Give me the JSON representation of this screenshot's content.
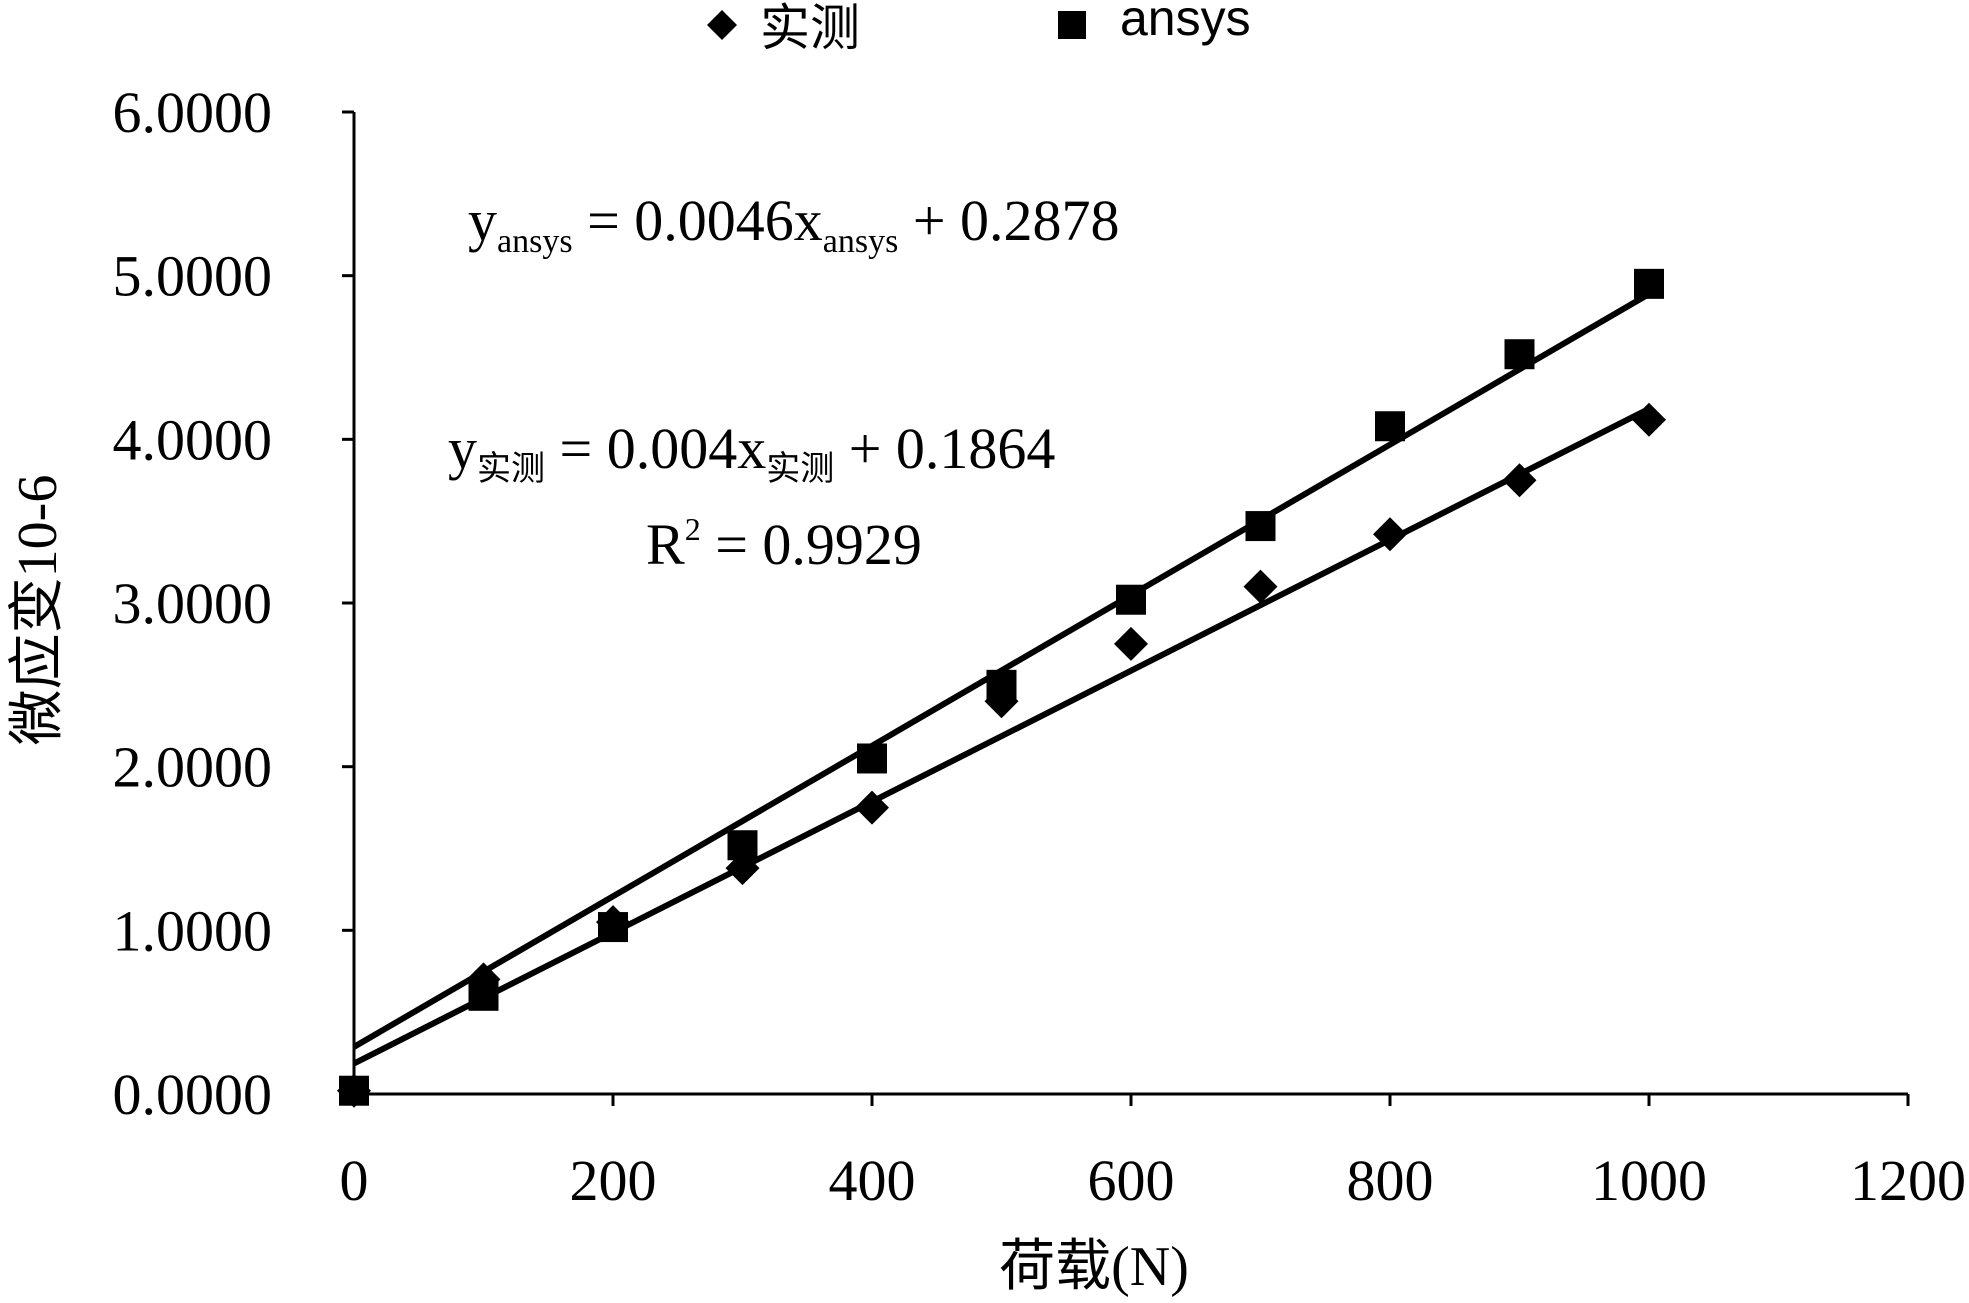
{
  "chart_data": {
    "type": "scatter",
    "title": "",
    "xlabel": "荷载(N)",
    "ylabel": "微应变10-6",
    "xlim": [
      0,
      1200
    ],
    "ylim": [
      0,
      6
    ],
    "x_ticks": [
      0,
      200,
      400,
      600,
      800,
      1000,
      1200
    ],
    "y_ticks": [
      0,
      1,
      2,
      3,
      4,
      5,
      6
    ],
    "x_tick_labels": [
      "0",
      "200",
      "400",
      "600",
      "800",
      "1000",
      "1200"
    ],
    "y_tick_labels": [
      "0.0000",
      "1.0000",
      "2.0000",
      "3.0000",
      "4.0000",
      "5.0000",
      "6.0000"
    ],
    "grid": false,
    "legend_position": "top-center",
    "series": [
      {
        "name": "实测",
        "marker": "diamond",
        "x": [
          0,
          100,
          200,
          300,
          400,
          500,
          600,
          700,
          800,
          900,
          1000
        ],
        "y": [
          0.02,
          0.7,
          1.05,
          1.38,
          1.75,
          2.4,
          2.75,
          3.1,
          3.42,
          3.75,
          4.12
        ],
        "trendline": {
          "slope": 0.004,
          "intercept": 0.1864
        }
      },
      {
        "name": "ansys",
        "marker": "square",
        "x": [
          0,
          100,
          200,
          300,
          400,
          500,
          600,
          700,
          800,
          900,
          1000
        ],
        "y": [
          0.02,
          0.6,
          1.02,
          1.52,
          2.05,
          2.5,
          3.02,
          3.47,
          4.08,
          4.52,
          4.95
        ],
        "trendline": {
          "slope": 0.0046,
          "intercept": 0.2878
        }
      }
    ],
    "annotations": {
      "ansys_eq": {
        "y": "y",
        "y_sub": "ansys",
        "mid": " = 0.0046x",
        "x_sub": "ansys",
        "tail": " + 0.2878"
      },
      "measured_eq": {
        "y": "y",
        "y_sub": "实测",
        "mid": " = 0.004x",
        "x_sub": "实测",
        "tail": " + 0.1864"
      },
      "r2": {
        "lead": "R",
        "sup": "2",
        "tail": " = 0.9929"
      }
    }
  }
}
